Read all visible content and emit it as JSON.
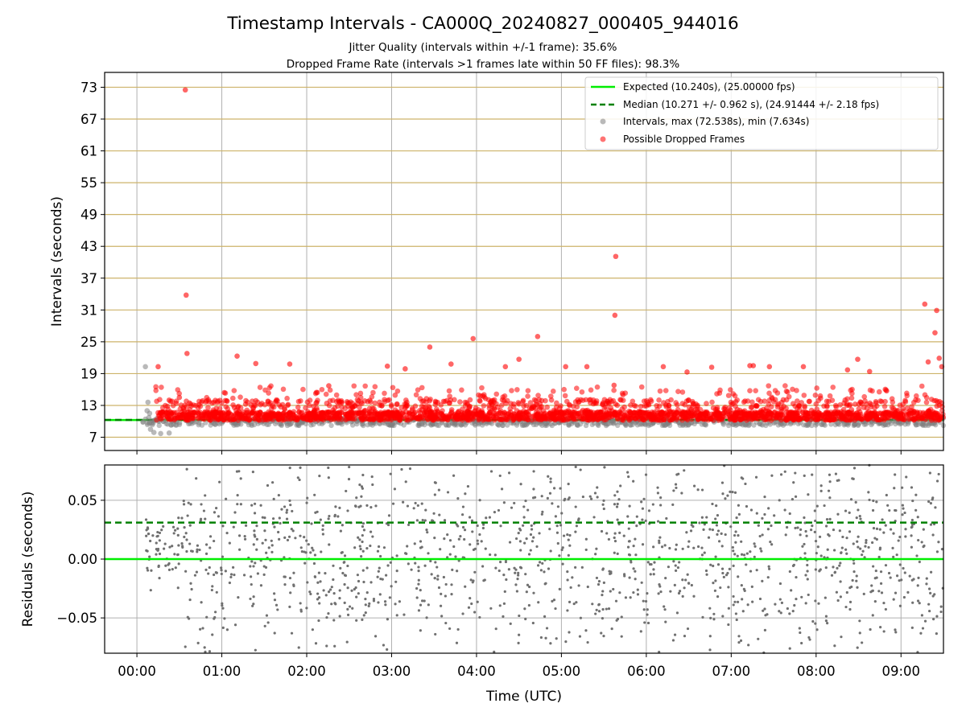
{
  "figure": {
    "title": "Timestamp Intervals - CA000Q_20240827_000405_944016",
    "subtitle_1": "Jitter Quality (intervals within +/-1 frame): 35.6%",
    "subtitle_2": "Dropped Frame Rate (intervals >1 frames late within 50 FF files): 98.3%"
  },
  "colors": {
    "expected": "#00ee00",
    "median": "#008000",
    "intervals": "#808080",
    "dropped": "#ff0000",
    "hgrid_top": "#cdb36a",
    "grid": "#b0b0b0"
  },
  "chart_data": [
    {
      "type": "scatter",
      "panel": "top",
      "ylabel": "Intervals (seconds)",
      "x_unit": "hours since 00:00 UTC",
      "xlim": [
        -0.38,
        9.5
      ],
      "ylim": [
        4.5,
        75.8
      ],
      "yticks": [
        7,
        13,
        19,
        25,
        31,
        37,
        43,
        49,
        55,
        61,
        67,
        73
      ],
      "ytick_labels": [
        "7",
        "13",
        "19",
        "25",
        "31",
        "37",
        "43",
        "49",
        "55",
        "61",
        "67",
        "73"
      ],
      "grid": true,
      "legend_position": "top-right",
      "legend": [
        "Expected (10.240s), (25.00000 fps)",
        "Median (10.271 +/- 0.962 s), (24.91444 +/- 2.18 fps)",
        "Intervals, max (72.538s), min (7.634s)",
        "Possible Dropped Frames"
      ],
      "expected_interval": 10.24,
      "median_interval": 10.271,
      "data_start": 0.07,
      "data_end": 9.5,
      "series": [
        {
          "name": "Intervals, max (72.538s), min (7.634s)",
          "points": [
            [
              0.1,
              20.3
            ],
            [
              0.12,
              12
            ],
            [
              0.13,
              13.6
            ],
            [
              0.16,
              8.5
            ],
            [
              0.2,
              7.9
            ],
            [
              0.28,
              7.7
            ],
            [
              0.38,
              7.8
            ],
            [
              0.15,
              11.5
            ],
            [
              0.1,
              10.4
            ],
            [
              0.14,
              10.7
            ]
          ]
        },
        {
          "name": "Possible Dropped Frames",
          "points": [
            [
              0.57,
              72.5
            ],
            [
              0.58,
              33.8
            ],
            [
              0.59,
              22.8
            ],
            [
              0.25,
              20.3
            ],
            [
              0.38,
              14
            ],
            [
              0.5,
              14.5
            ],
            [
              1.18,
              22.3
            ],
            [
              1.4,
              20.9
            ],
            [
              1.8,
              20.8
            ],
            [
              2.26,
              16.7
            ],
            [
              2.95,
              20.4
            ],
            [
              3.16,
              19.9
            ],
            [
              3.45,
              24
            ],
            [
              3.7,
              20.8
            ],
            [
              3.96,
              25.6
            ],
            [
              4.34,
              20.3
            ],
            [
              4.5,
              21.7
            ],
            [
              4.72,
              26
            ],
            [
              5.05,
              20.3
            ],
            [
              5.3,
              20.3
            ],
            [
              5.64,
              41.1
            ],
            [
              5.63,
              30
            ],
            [
              5.62,
              16.8
            ],
            [
              6.2,
              20.3
            ],
            [
              6.48,
              19.3
            ],
            [
              6.77,
              20.2
            ],
            [
              7.22,
              20.5
            ],
            [
              7.26,
              20.5
            ],
            [
              7.45,
              20.3
            ],
            [
              7.85,
              20.3
            ],
            [
              8.37,
              19.7
            ],
            [
              8.49,
              21.7
            ],
            [
              8.63,
              19.4
            ],
            [
              9.28,
              32.1
            ],
            [
              9.42,
              30.9
            ],
            [
              9.4,
              26.7
            ],
            [
              9.45,
              21.9
            ],
            [
              9.32,
              21.2
            ],
            [
              9.48,
              20.3
            ]
          ]
        }
      ]
    },
    {
      "type": "scatter",
      "panel": "bottom",
      "ylabel": "Residuals (seconds)",
      "xlabel": "Time (UTC)",
      "xlim": [
        -0.38,
        9.5
      ],
      "ylim": [
        -0.08,
        0.08
      ],
      "yticks": [
        -0.05,
        0,
        0.05
      ],
      "ytick_labels": [
        "−0.05",
        "0.00",
        "0.05"
      ],
      "xticks": [
        0,
        1,
        2,
        3,
        4,
        5,
        6,
        7,
        8,
        9
      ],
      "xtick_labels": [
        "00:00",
        "01:00",
        "02:00",
        "03:00",
        "04:00",
        "05:00",
        "06:00",
        "07:00",
        "08:00",
        "09:00"
      ],
      "grid": true,
      "expected_residual": 0.0,
      "median_residual": 0.031,
      "residual_spread": 0.045
    }
  ]
}
